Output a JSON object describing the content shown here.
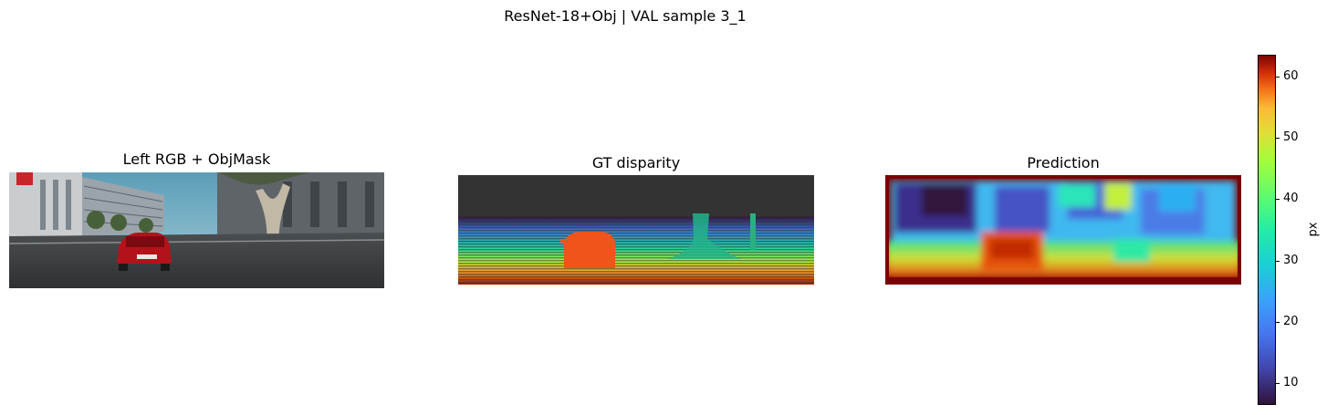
{
  "figure": {
    "title": "ResNet-18+Obj | VAL sample 3_1"
  },
  "panels": {
    "rgb": {
      "title": "Left RGB  +  ObjMask"
    },
    "gt": {
      "title": "GT disparity"
    },
    "pred": {
      "title": "Prediction"
    }
  },
  "colorbar": {
    "label": "px",
    "colormap": "turbo",
    "range": [
      6.5,
      63.5
    ],
    "ticks": [
      {
        "label": "10",
        "value": 10
      },
      {
        "label": "20",
        "value": 20
      },
      {
        "label": "30",
        "value": 30
      },
      {
        "label": "40",
        "value": 40
      },
      {
        "label": "50",
        "value": 50
      },
      {
        "label": "60",
        "value": 60
      }
    ]
  }
}
